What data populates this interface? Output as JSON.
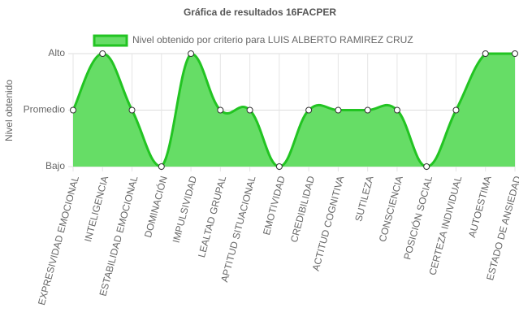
{
  "chart_data": {
    "type": "line",
    "title": "Gráfica de resultados 16FACPER",
    "y_label": "Nivel obtenido",
    "categories": [
      "EXPRESIVIDAD EMOCIONAL",
      "INTELIGENCIA",
      "ESTABILIDAD EMOCIONAL",
      "DOMINACIÓN",
      "IMPULSIVIDAD",
      "LEALTAD GRUPAL",
      "APTITUD SITUACIONAL",
      "EMOTIVIDAD",
      "CREDIBILIDAD",
      "ACTITUD COGNITIVA",
      "SUTILEZA",
      "CONSCIENCIA",
      "POSICIÓN SOCIAL",
      "CERTEZA INDIVIDUAL",
      "AUTOESTIMA",
      "ESTADO DE ANSIEDAD"
    ],
    "series": [
      {
        "name": "Nivel obtenido por criterio para LUIS ALBERTO RAMIREZ CRUZ",
        "color": "#22c422",
        "fill": "#66dd66",
        "values": [
          2,
          3,
          2,
          1,
          3,
          2,
          2,
          1,
          2,
          2,
          2,
          2,
          1,
          2,
          3,
          3
        ]
      }
    ],
    "ylim": [
      1,
      3
    ],
    "yticks": [
      {
        "value": 1,
        "label": "Bajo"
      },
      {
        "value": 2,
        "label": "Promedio"
      },
      {
        "value": 3,
        "label": "Alto"
      }
    ],
    "grid": true
  }
}
